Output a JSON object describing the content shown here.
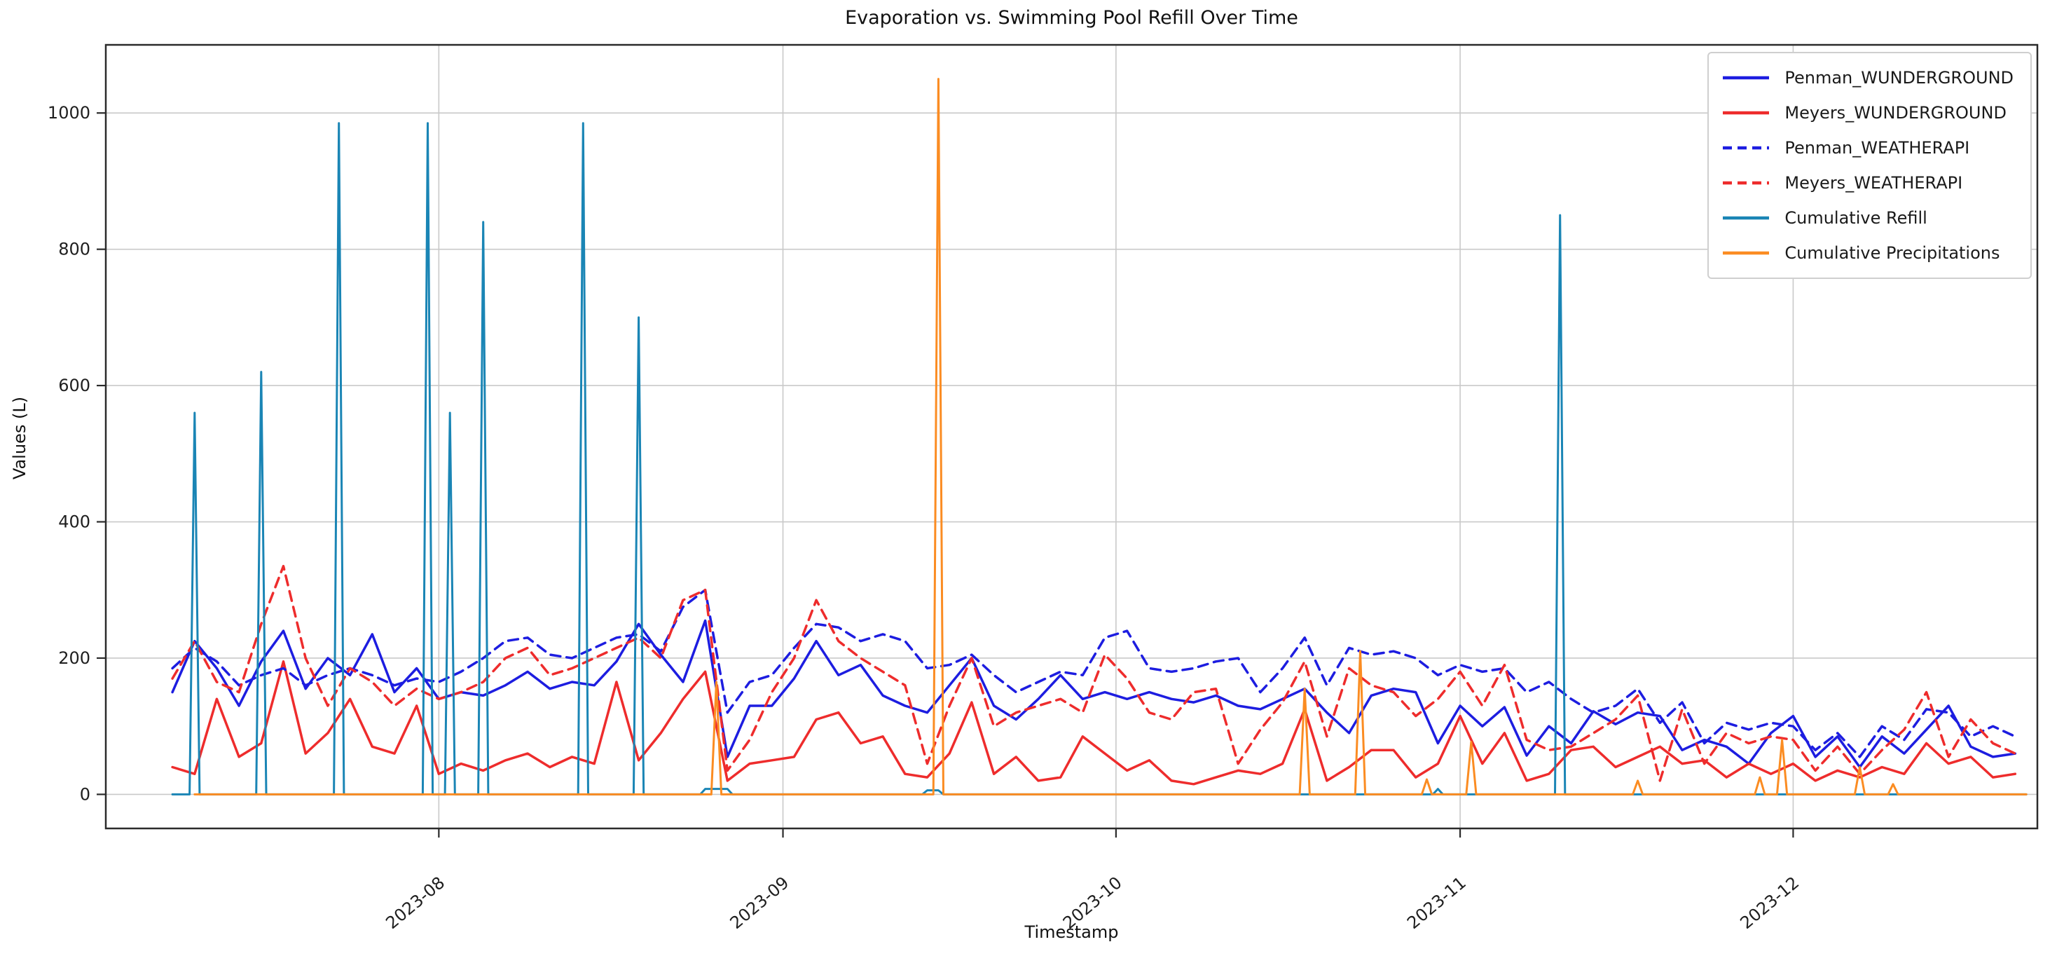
{
  "chart_data": {
    "type": "line",
    "title": "Evaporation vs. Swimming Pool Refill Over Time",
    "xlabel": "Timestamp",
    "ylabel": "Values (L)",
    "grid": true,
    "legend_position": "upper right",
    "x_unit": "days (index 0 = 2023-07-08, evaporation series sampled every 2 days)",
    "xlim_days": [
      -6,
      168
    ],
    "ylim": [
      -50,
      1100
    ],
    "y_ticks": [
      0,
      200,
      400,
      600,
      800,
      1000
    ],
    "x_ticks": [
      {
        "day": 24,
        "label": "2023-08"
      },
      {
        "day": 55,
        "label": "2023-09"
      },
      {
        "day": 85,
        "label": "2023-10"
      },
      {
        "day": 116,
        "label": "2023-11"
      },
      {
        "day": 146,
        "label": "2023-12"
      }
    ],
    "series": [
      {
        "name": "Penman_WUNDERGROUND",
        "color": "#1d1de0",
        "dash": "solid",
        "width": 3.5,
        "step": 2,
        "start_day": 0,
        "values": [
          150,
          225,
          185,
          130,
          195,
          240,
          155,
          200,
          175,
          235,
          150,
          185,
          140,
          150,
          145,
          160,
          180,
          155,
          165,
          160,
          195,
          250,
          205,
          165,
          255,
          55,
          130,
          130,
          170,
          225,
          175,
          190,
          145,
          130,
          120,
          160,
          200,
          130,
          110,
          140,
          175,
          140,
          150,
          140,
          150,
          140,
          135,
          145,
          130,
          125,
          140,
          155,
          120,
          90,
          145,
          155,
          150,
          75,
          130,
          100,
          128,
          57,
          100,
          75,
          122,
          103,
          120,
          115,
          65,
          80,
          70,
          45,
          90,
          115,
          55,
          85,
          40,
          85,
          60,
          95,
          130,
          70,
          55,
          60
        ]
      },
      {
        "name": "Meyers_WUNDERGROUND",
        "color": "#ee2c2c",
        "dash": "solid",
        "width": 3.5,
        "step": 2,
        "start_day": 0,
        "values": [
          40,
          30,
          140,
          55,
          75,
          195,
          60,
          90,
          140,
          70,
          60,
          130,
          30,
          45,
          35,
          50,
          60,
          40,
          55,
          45,
          165,
          50,
          90,
          140,
          180,
          20,
          45,
          50,
          55,
          110,
          120,
          75,
          85,
          30,
          25,
          60,
          135,
          30,
          55,
          20,
          25,
          85,
          60,
          35,
          50,
          20,
          15,
          25,
          35,
          30,
          45,
          125,
          20,
          40,
          65,
          65,
          25,
          45,
          115,
          45,
          90,
          20,
          30,
          65,
          70,
          40,
          55,
          70,
          45,
          50,
          25,
          45,
          30,
          45,
          20,
          35,
          25,
          40,
          30,
          75,
          45,
          55,
          25,
          30
        ]
      },
      {
        "name": "Penman_WEATHERAPI",
        "color": "#1d1de0",
        "dash": "dashed",
        "width": 3.5,
        "step": 2,
        "start_day": 0,
        "values": [
          185,
          215,
          195,
          160,
          175,
          185,
          160,
          175,
          185,
          175,
          160,
          170,
          165,
          180,
          200,
          225,
          230,
          205,
          200,
          215,
          230,
          235,
          210,
          275,
          300,
          120,
          165,
          175,
          215,
          250,
          245,
          225,
          235,
          225,
          185,
          190,
          205,
          175,
          150,
          165,
          180,
          175,
          230,
          240,
          185,
          180,
          185,
          195,
          200,
          150,
          185,
          230,
          160,
          215,
          205,
          210,
          200,
          175,
          190,
          180,
          185,
          150,
          165,
          140,
          120,
          130,
          155,
          105,
          135,
          75,
          105,
          95,
          105,
          100,
          65,
          90,
          55,
          100,
          80,
          125,
          120,
          85,
          100,
          85
        ]
      },
      {
        "name": "Meyers_WEATHERAPI",
        "color": "#ee2c2c",
        "dash": "dashed",
        "width": 3.5,
        "step": 2,
        "start_day": 0,
        "values": [
          170,
          225,
          165,
          150,
          250,
          335,
          200,
          130,
          185,
          165,
          130,
          155,
          140,
          150,
          165,
          200,
          215,
          175,
          185,
          200,
          215,
          230,
          200,
          285,
          300,
          35,
          80,
          150,
          200,
          285,
          225,
          200,
          180,
          160,
          45,
          130,
          200,
          100,
          120,
          130,
          140,
          120,
          205,
          170,
          120,
          110,
          150,
          155,
          45,
          95,
          135,
          195,
          85,
          185,
          160,
          150,
          115,
          140,
          180,
          130,
          190,
          80,
          65,
          70,
          90,
          110,
          145,
          20,
          125,
          45,
          90,
          75,
          85,
          80,
          35,
          70,
          30,
          65,
          95,
          150,
          55,
          110,
          75,
          60
        ]
      },
      {
        "name": "Cumulative Refill",
        "color": "#1a85b5",
        "dash": "solid",
        "width": 3,
        "step": 1,
        "start_day": 0,
        "length": 168,
        "base": 0,
        "spikes": {
          "2": 560,
          "8": 620,
          "15": 985,
          "23": 985,
          "25": 560,
          "28": 840,
          "37": 985,
          "42": 700,
          "48": 8,
          "49": 8,
          "50": 8,
          "68": 6,
          "69": 6,
          "114": 8,
          "125": 850
        }
      },
      {
        "name": "Cumulative Precipitations",
        "color": "#fb8c22",
        "dash": "solid",
        "width": 3,
        "step": 1,
        "start_day": 2,
        "length": 168,
        "base": 0,
        "spikes": {
          "49": 165,
          "69": 1050,
          "102": 155,
          "107": 210,
          "113": 22,
          "117": 77,
          "132": 20,
          "143": 25,
          "145": 80,
          "152": 40,
          "155": 15
        }
      }
    ]
  },
  "style": {
    "grid_color": "#c9c9c9",
    "spine_color": "#2b2b2b",
    "tick_text_color": "#1f1f1f",
    "background": "#ffffff"
  }
}
